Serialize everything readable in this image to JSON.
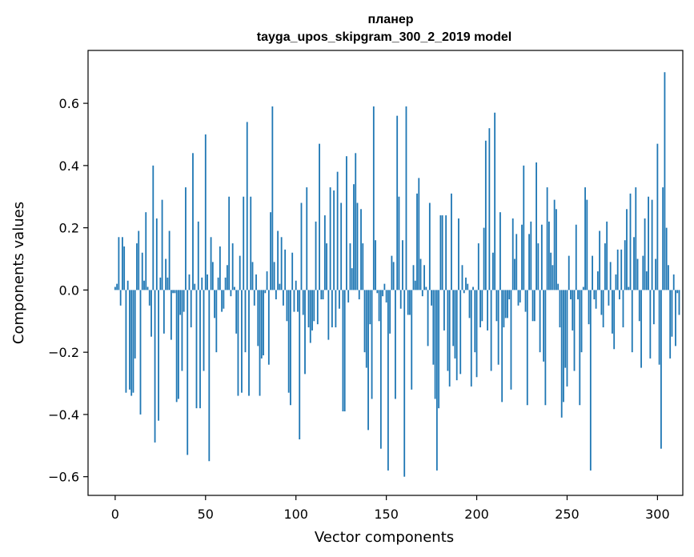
{
  "chart_data": {
    "type": "bar",
    "title_lines": [
      "планер",
      "tayga_upos_skipgram_300_2_2019 model"
    ],
    "xlabel": "Vector components",
    "ylabel": "Components values",
    "x_ticks": [
      {
        "value": 0,
        "label": "0"
      },
      {
        "value": 50,
        "label": "50"
      },
      {
        "value": 100,
        "label": "100"
      },
      {
        "value": 150,
        "label": "150"
      },
      {
        "value": 200,
        "label": "200"
      },
      {
        "value": 250,
        "label": "250"
      },
      {
        "value": 300,
        "label": "300"
      }
    ],
    "y_ticks": [
      {
        "value": -0.6,
        "label": "−0.6"
      },
      {
        "value": -0.4,
        "label": "−0.4"
      },
      {
        "value": -0.2,
        "label": "−0.2"
      },
      {
        "value": 0.0,
        "label": "0.0"
      },
      {
        "value": 0.2,
        "label": "0.2"
      },
      {
        "value": 0.4,
        "label": "0.4"
      },
      {
        "value": 0.6,
        "label": "0.6"
      }
    ],
    "xlim": [
      -15,
      314
    ],
    "ylim": [
      -0.66,
      0.77
    ],
    "grid": false,
    "bar_color": "#1f77b4",
    "values": [
      0.01,
      0.02,
      0.17,
      -0.05,
      0.17,
      0.14,
      -0.33,
      0.03,
      -0.32,
      -0.34,
      -0.33,
      -0.22,
      0.15,
      0.19,
      -0.4,
      0.12,
      0.03,
      0.25,
      0.01,
      -0.05,
      -0.15,
      0.4,
      -0.49,
      0.23,
      -0.42,
      0.04,
      0.29,
      -0.14,
      0.1,
      0.04,
      0.19,
      -0.16,
      -0.01,
      -0.01,
      -0.36,
      -0.35,
      -0.08,
      -0.26,
      -0.07,
      0.33,
      -0.53,
      0.05,
      -0.12,
      0.44,
      0.02,
      -0.38,
      0.22,
      -0.38,
      0.04,
      -0.26,
      0.5,
      0.05,
      -0.55,
      0.17,
      0.09,
      -0.09,
      -0.2,
      0.04,
      0.14,
      -0.07,
      -0.06,
      0.04,
      0.08,
      0.3,
      -0.02,
      0.15,
      0.01,
      -0.14,
      -0.34,
      0.11,
      -0.33,
      0.3,
      -0.2,
      0.54,
      -0.34,
      0.3,
      0.09,
      -0.05,
      0.05,
      -0.18,
      -0.34,
      -0.22,
      -0.21,
      -0.01,
      0.06,
      -0.24,
      0.25,
      0.59,
      0.09,
      -0.03,
      0.19,
      0.02,
      0.17,
      -0.05,
      0.13,
      -0.1,
      -0.33,
      -0.37,
      0.12,
      -0.07,
      0.03,
      -0.07,
      -0.48,
      0.28,
      -0.08,
      -0.27,
      0.33,
      -0.12,
      -0.17,
      -0.13,
      -0.1,
      0.22,
      -0.11,
      0.47,
      -0.03,
      -0.03,
      0.24,
      0.15,
      -0.16,
      0.33,
      -0.12,
      0.32,
      -0.12,
      0.38,
      -0.06,
      0.28,
      -0.39,
      -0.39,
      0.43,
      -0.04,
      0.15,
      0.07,
      0.34,
      0.44,
      0.28,
      -0.03,
      0.26,
      0.15,
      -0.2,
      -0.25,
      -0.45,
      -0.11,
      -0.35,
      0.59,
      0.16,
      -0.01,
      -0.1,
      -0.51,
      -0.02,
      0.02,
      -0.04,
      -0.58,
      -0.14,
      0.11,
      0.09,
      -0.35,
      0.56,
      0.3,
      -0.06,
      0.16,
      -0.6,
      0.59,
      -0.08,
      -0.08,
      -0.32,
      0.08,
      0.03,
      0.31,
      0.36,
      0.1,
      -0.02,
      0.08,
      0.01,
      -0.18,
      0.28,
      -0.05,
      -0.24,
      -0.35,
      -0.58,
      -0.38,
      0.24,
      0.24,
      -0.13,
      0.24,
      -0.26,
      -0.31,
      0.31,
      -0.18,
      -0.22,
      -0.29,
      0.23,
      -0.27,
      0.08,
      -0.01,
      0.04,
      0.02,
      -0.09,
      -0.31,
      0.01,
      -0.2,
      -0.28,
      0.15,
      -0.12,
      -0.1,
      0.2,
      0.48,
      -0.13,
      0.52,
      -0.26,
      0.12,
      0.57,
      -0.1,
      -0.24,
      0.25,
      -0.36,
      -0.12,
      -0.09,
      -0.09,
      -0.03,
      -0.32,
      0.23,
      0.1,
      0.18,
      -0.05,
      -0.04,
      0.21,
      0.4,
      -0.07,
      -0.37,
      0.18,
      0.22,
      -0.1,
      -0.1,
      0.41,
      0.15,
      -0.2,
      0.21,
      -0.23,
      -0.37,
      0.33,
      0.22,
      0.12,
      0.08,
      0.29,
      0.26,
      0.02,
      -0.12,
      -0.41,
      -0.36,
      -0.25,
      -0.31,
      0.11,
      -0.03,
      -0.13,
      -0.26,
      0.21,
      -0.03,
      -0.37,
      -0.2,
      0.01,
      0.33,
      0.29,
      -0.11,
      -0.58,
      0.11,
      -0.03,
      -0.06,
      0.06,
      0.19,
      -0.08,
      -0.12,
      0.15,
      0.22,
      -0.05,
      0.09,
      -0.14,
      -0.19,
      0.05,
      0.13,
      -0.03,
      0.13,
      -0.12,
      0.16,
      0.26,
      0.01,
      0.31,
      -0.2,
      0.17,
      0.33,
      0.1,
      -0.1,
      -0.25,
      0.11,
      0.23,
      0.06,
      0.3,
      -0.22,
      0.29,
      -0.11,
      0.1,
      0.47,
      -0.24,
      -0.51,
      0.33,
      0.7,
      0.2,
      0.08,
      -0.22,
      -0.15,
      0.05,
      -0.18,
      -0.01,
      -0.08
    ]
  }
}
